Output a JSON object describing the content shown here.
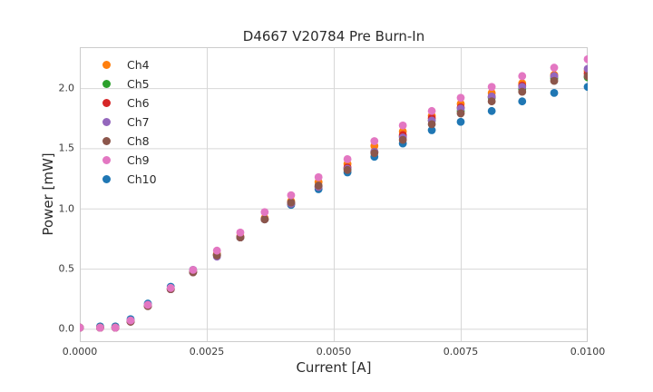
{
  "chart_data": {
    "type": "scatter",
    "title": "D4667 V20784 Pre Burn-In",
    "xlabel": "Current [A]",
    "ylabel": "Power [mW]",
    "grid": true,
    "legend_position": "upper left",
    "xlim": [
      0.0,
      0.01
    ],
    "ylim": [
      -0.11,
      2.34
    ],
    "xticks": {
      "values": [
        0.0,
        0.0025,
        0.005,
        0.0075,
        0.01
      ],
      "labels": [
        "0.0000",
        "0.0025",
        "0.0050",
        "0.0075",
        "0.0100"
      ]
    },
    "yticks": {
      "values": [
        0.0,
        0.5,
        1.0,
        1.5,
        2.0
      ],
      "labels": [
        "0.0",
        "0.5",
        "1.0",
        "1.5",
        "2.0"
      ]
    },
    "x": [
      0.0,
      0.0004,
      0.0007,
      0.001,
      0.00134,
      0.00179,
      0.00223,
      0.0027,
      0.00316,
      0.00364,
      0.00416,
      0.0047,
      0.00527,
      0.0058,
      0.00636,
      0.00693,
      0.0075,
      0.00811,
      0.00871,
      0.00934,
      0.01
    ],
    "series": [
      {
        "name": "Ch4",
        "color": "#ff7f0e",
        "values": [
          0.01,
          0.01,
          0.01,
          0.06,
          0.19,
          0.33,
          0.48,
          0.62,
          0.77,
          0.92,
          1.06,
          1.22,
          1.37,
          1.52,
          1.64,
          1.77,
          1.87,
          1.96,
          2.04,
          2.11,
          2.14
        ]
      },
      {
        "name": "Ch5",
        "color": "#2ca02c",
        "values": [
          0.01,
          0.01,
          0.01,
          0.06,
          0.19,
          0.33,
          0.47,
          0.61,
          0.76,
          0.91,
          1.04,
          1.18,
          1.33,
          1.47,
          1.6,
          1.73,
          1.81,
          1.92,
          1.99,
          2.08,
          2.09
        ]
      },
      {
        "name": "Ch6",
        "color": "#d62728",
        "values": [
          0.01,
          0.01,
          0.01,
          0.06,
          0.19,
          0.33,
          0.47,
          0.61,
          0.76,
          0.91,
          1.04,
          1.18,
          1.34,
          1.47,
          1.61,
          1.75,
          1.84,
          1.93,
          2.02,
          2.1,
          2.12
        ]
      },
      {
        "name": "Ch7",
        "color": "#9467bd",
        "values": [
          0.01,
          0.01,
          0.01,
          0.06,
          0.19,
          0.33,
          0.47,
          0.6,
          0.76,
          0.91,
          1.04,
          1.18,
          1.33,
          1.47,
          1.59,
          1.73,
          1.83,
          1.93,
          2.01,
          2.1,
          2.16
        ]
      },
      {
        "name": "Ch8",
        "color": "#8c564b",
        "values": [
          0.01,
          0.01,
          0.01,
          0.06,
          0.19,
          0.33,
          0.47,
          0.61,
          0.76,
          0.91,
          1.05,
          1.19,
          1.32,
          1.46,
          1.57,
          1.7,
          1.79,
          1.89,
          1.97,
          2.06,
          2.1
        ]
      },
      {
        "name": "Ch9",
        "color": "#e377c2",
        "values": [
          0.01,
          0.01,
          0.01,
          0.07,
          0.2,
          0.34,
          0.49,
          0.65,
          0.8,
          0.97,
          1.11,
          1.26,
          1.41,
          1.56,
          1.69,
          1.81,
          1.92,
          2.01,
          2.1,
          2.17,
          2.24
        ]
      },
      {
        "name": "Ch10",
        "color": "#1f77b4",
        "values": [
          0.01,
          0.02,
          0.02,
          0.08,
          0.21,
          0.35,
          0.49,
          0.62,
          0.76,
          0.91,
          1.03,
          1.16,
          1.3,
          1.43,
          1.54,
          1.65,
          1.72,
          1.81,
          1.89,
          1.96,
          2.01
        ]
      }
    ]
  }
}
